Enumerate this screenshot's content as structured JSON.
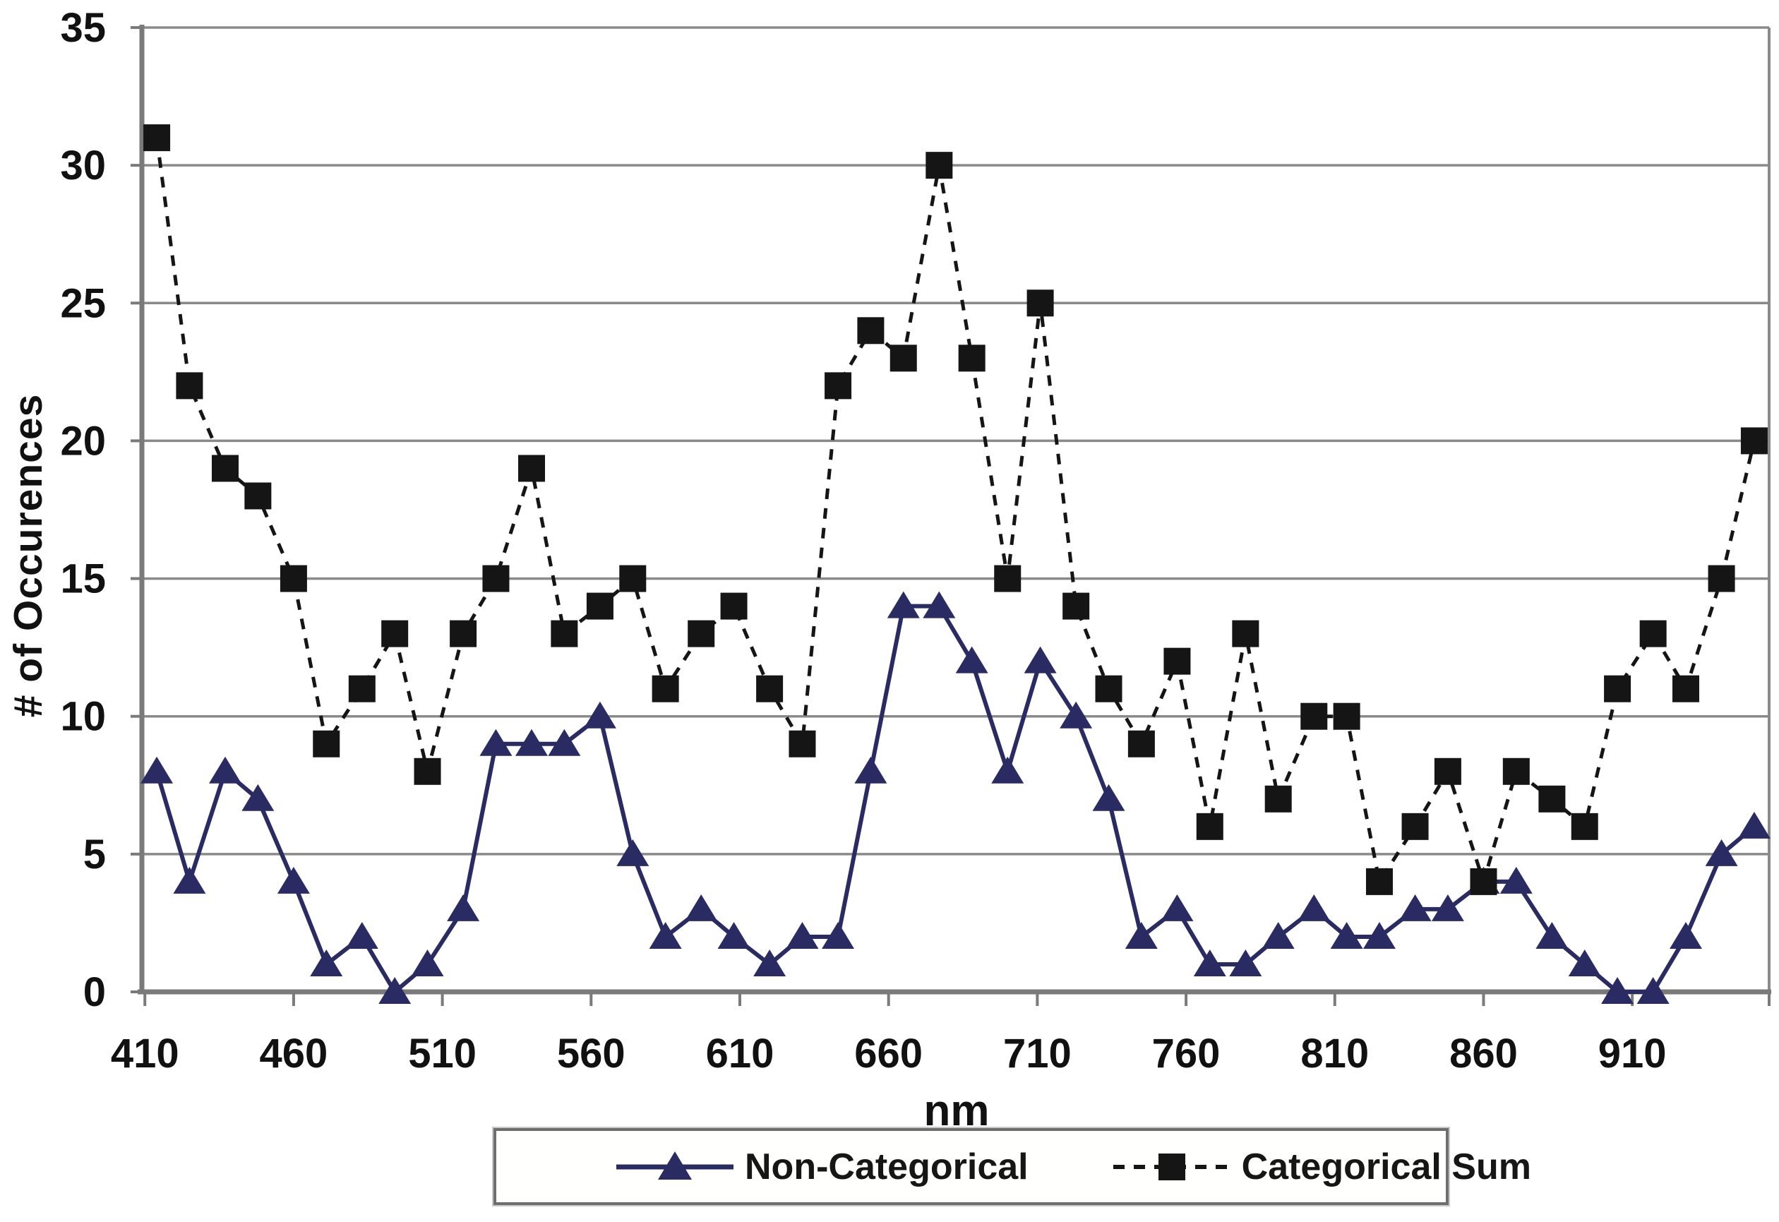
{
  "chart_data": {
    "type": "line",
    "title": "",
    "xlabel": "nm",
    "ylabel": "# of Occurences",
    "grid": true,
    "legend_position": "bottom",
    "xlim": [
      409,
      956
    ],
    "ylim": [
      0,
      35
    ],
    "x_ticks": [
      410,
      460,
      510,
      560,
      610,
      660,
      710,
      760,
      810,
      860,
      910
    ],
    "y_ticks": [
      0,
      5,
      10,
      15,
      20,
      25,
      30,
      35
    ],
    "x": [
      414,
      425,
      437,
      448,
      460,
      471,
      483,
      494,
      505,
      517,
      528,
      540,
      551,
      563,
      574,
      585,
      597,
      608,
      620,
      631,
      643,
      654,
      665,
      677,
      688,
      700,
      711,
      723,
      734,
      745,
      757,
      768,
      780,
      791,
      803,
      814,
      825,
      837,
      848,
      860,
      871,
      883,
      894,
      905,
      917,
      928,
      940,
      951
    ],
    "series": [
      {
        "name": "Non-Categorical",
        "marker": "triangle",
        "line": "solid",
        "color": "#2b2b63",
        "values": [
          8,
          4,
          8,
          7,
          4,
          1,
          2,
          0,
          1,
          3,
          9,
          9,
          9,
          10,
          5,
          2,
          3,
          2,
          1,
          2,
          2,
          8,
          14,
          14,
          12,
          8,
          12,
          10,
          7,
          2,
          3,
          1,
          1,
          2,
          3,
          2,
          2,
          3,
          3,
          4,
          4,
          2,
          1,
          0,
          0,
          2,
          5,
          6
        ]
      },
      {
        "name": "Categorical Sum",
        "marker": "square",
        "line": "dashed",
        "color": "#151515",
        "values": [
          31,
          22,
          19,
          18,
          15,
          9,
          11,
          13,
          8,
          13,
          15,
          19,
          13,
          14,
          15,
          11,
          13,
          14,
          11,
          9,
          22,
          24,
          23,
          30,
          23,
          15,
          25,
          14,
          11,
          9,
          12,
          6,
          13,
          7,
          10,
          10,
          4,
          6,
          8,
          4,
          8,
          7,
          6,
          11,
          13,
          11,
          15,
          20
        ]
      }
    ],
    "colors": {
      "gridline": "#8a8a8a",
      "axis": "#7a7a7a",
      "tick_label": "#111111"
    }
  }
}
